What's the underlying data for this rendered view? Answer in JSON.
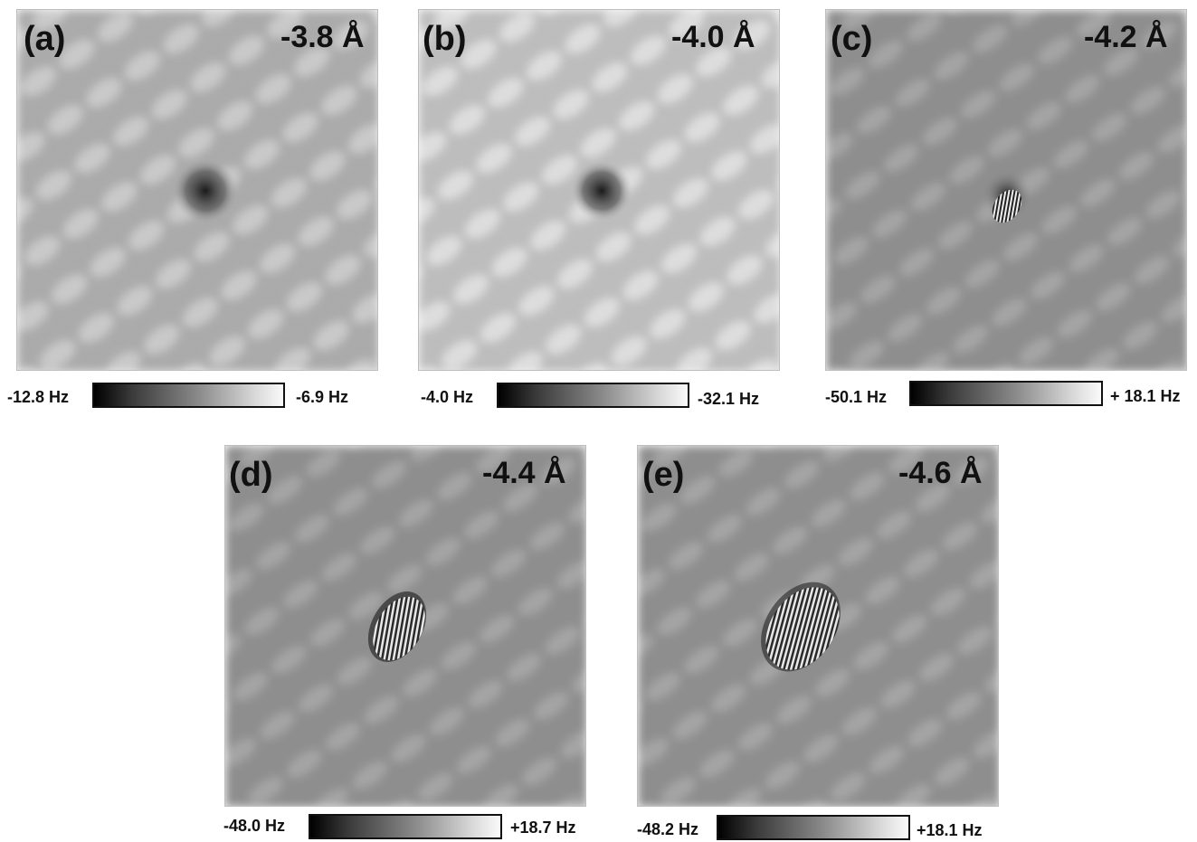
{
  "panels": [
    {
      "tag": "(a)",
      "distance": "-3.8 Å",
      "scale_min": "-12.8 Hz",
      "scale_max": "-6.9 Hz"
    },
    {
      "tag": "(b)",
      "distance": "-4.0 Å",
      "scale_min": "-4.0 Hz",
      "scale_max": "-32.1 Hz"
    },
    {
      "tag": "(c)",
      "distance": "-4.2 Å",
      "scale_min": "-50.1 Hz",
      "scale_max": "+ 18.1 Hz"
    },
    {
      "tag": "(d)",
      "distance": "-4.4 Å",
      "scale_min": "-48.0 Hz",
      "scale_max": "+18.7 Hz"
    },
    {
      "tag": "(e)",
      "distance": "-4.6 Å",
      "scale_min": "-48.2 Hz",
      "scale_max": "+18.1 Hz"
    }
  ]
}
